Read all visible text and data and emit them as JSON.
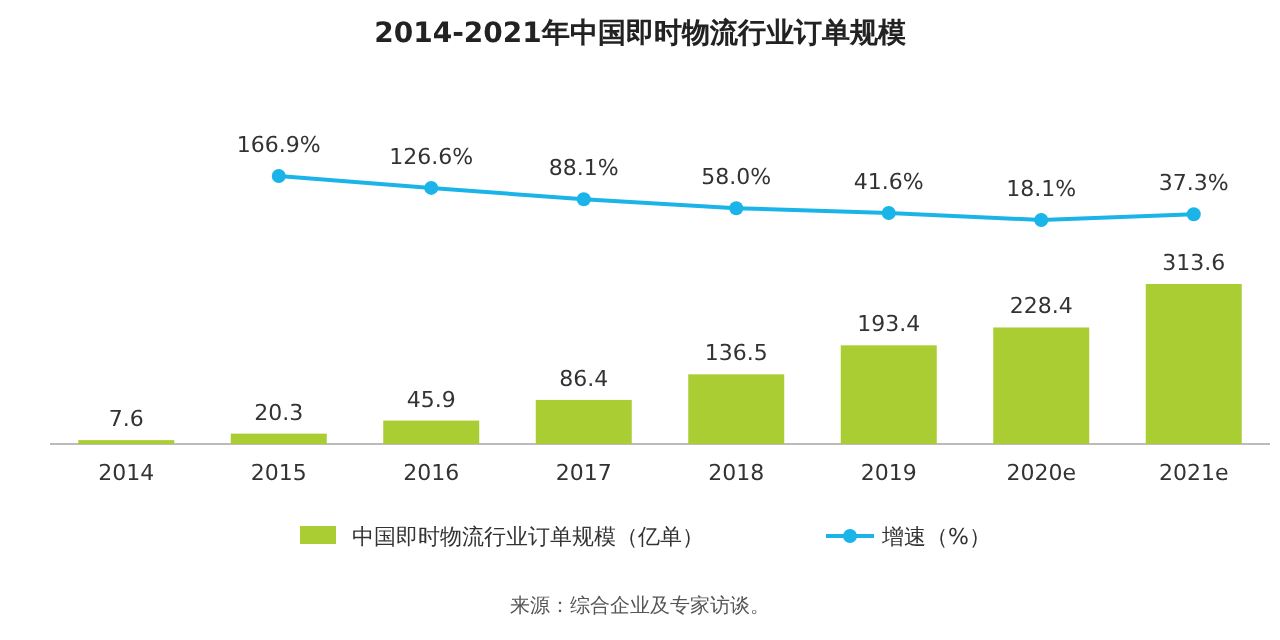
{
  "chart_data": [
    {
      "type": "bar",
      "categories": [
        "2014",
        "2015",
        "2016",
        "2017",
        "2018",
        "2019",
        "2020e",
        "2021e"
      ],
      "series": [
        {
          "name": "中国即时物流行业订单规模（亿单）",
          "type": "bar",
          "color": "#abcd34",
          "values": [
            7.6,
            20.3,
            45.9,
            86.4,
            136.5,
            193.4,
            228.4,
            313.6
          ]
        }
      ],
      "data_labels": true,
      "legend": "bottom",
      "annotations": [
        "来源：综合企业及专家访谈。"
      ]
    },
    {
      "type": "line",
      "title": "2014-2021年中国即时物流行业订单规模",
      "categories": [
        null,
        null,
        null,
        null,
        null,
        null,
        null,
        null
      ],
      "series": [
        {
          "name": "增速（%）",
          "color": "#1ab4e8",
          "values": [
            null,
            166.9,
            126.6,
            88.1,
            58.0,
            41.6,
            18.1,
            37.3
          ],
          "value_labels": [
            null,
            "166.9%",
            "126.6%",
            "88.1%",
            "58.0%",
            "41.6%",
            "18.1%",
            "37.3%"
          ]
        }
      ],
      "marker": "circle",
      "legend": "bottom"
    }
  ]
}
